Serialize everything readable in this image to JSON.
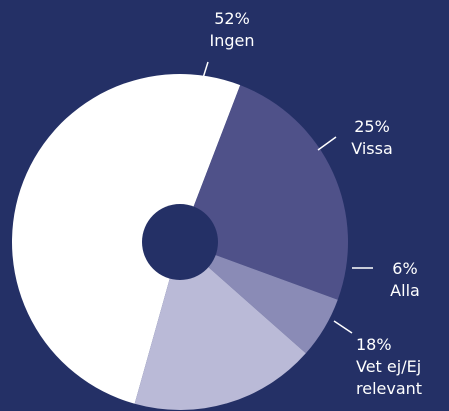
{
  "chart_data": {
    "type": "donut",
    "categories": [
      "Ingen",
      "Vissa",
      "Alla",
      "Vet ej/Ej relevant"
    ],
    "values": [
      52,
      25,
      6,
      18
    ],
    "value_labels": [
      "52%",
      "25%",
      "6%",
      "18%"
    ],
    "colors": [
      "#ffffff",
      "#4f5189",
      "#8a8bb6",
      "#babad7"
    ]
  }
}
